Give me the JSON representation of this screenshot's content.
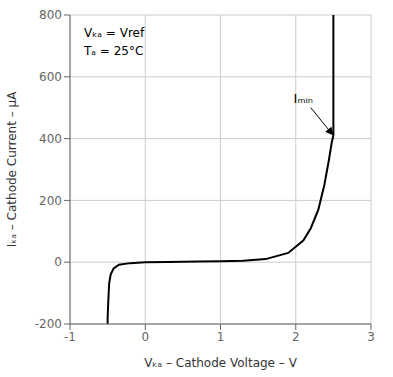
{
  "chart_data": {
    "type": "line",
    "xlabel": "Vₖₐ – Cathode Voltage – V",
    "ylabel": "Iₖₐ – Cathode Current – μA",
    "x": [
      -0.5,
      -0.5,
      -0.49,
      -0.48,
      -0.46,
      -0.42,
      -0.35,
      -0.2,
      0.0,
      0.3,
      0.7,
      1.0,
      1.3,
      1.6,
      1.9,
      2.1,
      2.2,
      2.3,
      2.38,
      2.44,
      2.48,
      2.5,
      2.5
    ],
    "values": [
      -200,
      -180,
      -120,
      -70,
      -40,
      -20,
      -8,
      -3,
      0,
      1,
      2,
      3,
      5,
      10,
      30,
      70,
      110,
      170,
      250,
      330,
      390,
      410,
      800
    ],
    "color": "#000000",
    "xlim": [
      -1,
      3
    ],
    "ylim": [
      -200,
      800
    ],
    "xticks": [
      -1,
      0,
      1,
      2,
      3
    ],
    "yticks": [
      -200,
      0,
      200,
      400,
      600,
      800
    ],
    "grid": true,
    "annotations": [
      {
        "text": "Iₘᵢₙ",
        "x": 2.1,
        "y": 510,
        "arrow_from": [
          2.2,
          500
        ],
        "arrow_to": [
          2.5,
          410
        ]
      }
    ],
    "notes": [
      "Vₖₐ = Vref",
      "Tₐ = 25°C"
    ]
  }
}
